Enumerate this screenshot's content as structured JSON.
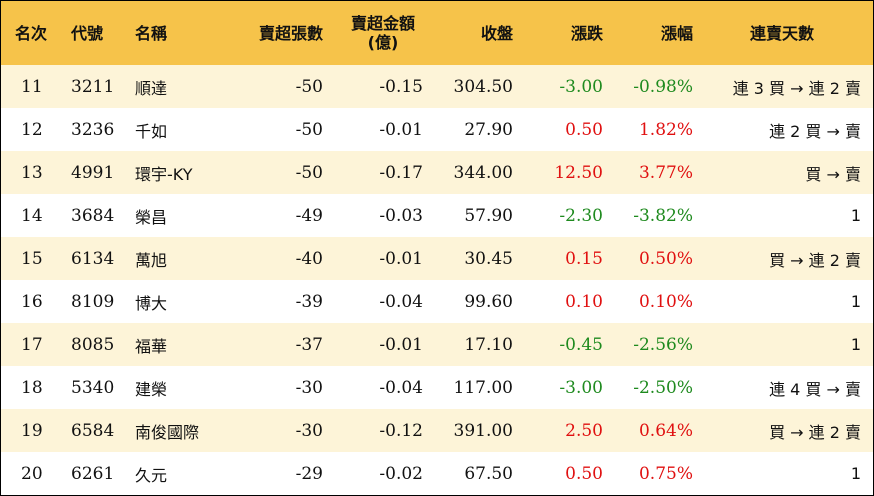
{
  "header": {
    "rank": "名次",
    "code": "代號",
    "name": "名稱",
    "net_sell_lots": "賣超張數",
    "net_sell_amount_line1": "賣超金額",
    "net_sell_amount_line2": "(億)",
    "close": "收盤",
    "change": "漲跌",
    "change_pct": "漲幅",
    "streak": "連賣天數"
  },
  "colors": {
    "header_bg": "#f6c34a",
    "stripe_bg": "#fdf4d8",
    "up": "#e01010",
    "down": "#1e8a1e"
  },
  "rows": [
    {
      "rank": "11",
      "code": "3211",
      "name": "順達",
      "lots": "-50",
      "amount": "-0.15",
      "close": "304.50",
      "change": "-3.00",
      "pct": "-0.98%",
      "dir": "down",
      "streak": "連 3 買 → 連 2 賣"
    },
    {
      "rank": "12",
      "code": "3236",
      "name": "千如",
      "lots": "-50",
      "amount": "-0.01",
      "close": "27.90",
      "change": "0.50",
      "pct": "1.82%",
      "dir": "up",
      "streak": "連 2 買 → 賣"
    },
    {
      "rank": "13",
      "code": "4991",
      "name": "環宇-KY",
      "lots": "-50",
      "amount": "-0.17",
      "close": "344.00",
      "change": "12.50",
      "pct": "3.77%",
      "dir": "up",
      "streak": "買 → 賣"
    },
    {
      "rank": "14",
      "code": "3684",
      "name": "榮昌",
      "lots": "-49",
      "amount": "-0.03",
      "close": "57.90",
      "change": "-2.30",
      "pct": "-3.82%",
      "dir": "down",
      "streak": "1"
    },
    {
      "rank": "15",
      "code": "6134",
      "name": "萬旭",
      "lots": "-40",
      "amount": "-0.01",
      "close": "30.45",
      "change": "0.15",
      "pct": "0.50%",
      "dir": "up",
      "streak": "買 → 連 2 賣"
    },
    {
      "rank": "16",
      "code": "8109",
      "name": "博大",
      "lots": "-39",
      "amount": "-0.04",
      "close": "99.60",
      "change": "0.10",
      "pct": "0.10%",
      "dir": "up",
      "streak": "1"
    },
    {
      "rank": "17",
      "code": "8085",
      "name": "福華",
      "lots": "-37",
      "amount": "-0.01",
      "close": "17.10",
      "change": "-0.45",
      "pct": "-2.56%",
      "dir": "down",
      "streak": "1"
    },
    {
      "rank": "18",
      "code": "5340",
      "name": "建榮",
      "lots": "-30",
      "amount": "-0.04",
      "close": "117.00",
      "change": "-3.00",
      "pct": "-2.50%",
      "dir": "down",
      "streak": "連 4 買 → 賣"
    },
    {
      "rank": "19",
      "code": "6584",
      "name": "南俊國際",
      "lots": "-30",
      "amount": "-0.12",
      "close": "391.00",
      "change": "2.50",
      "pct": "0.64%",
      "dir": "up",
      "streak": "買 → 連 2 賣"
    },
    {
      "rank": "20",
      "code": "6261",
      "name": "久元",
      "lots": "-29",
      "amount": "-0.02",
      "close": "67.50",
      "change": "0.50",
      "pct": "0.75%",
      "dir": "up",
      "streak": "1"
    }
  ]
}
